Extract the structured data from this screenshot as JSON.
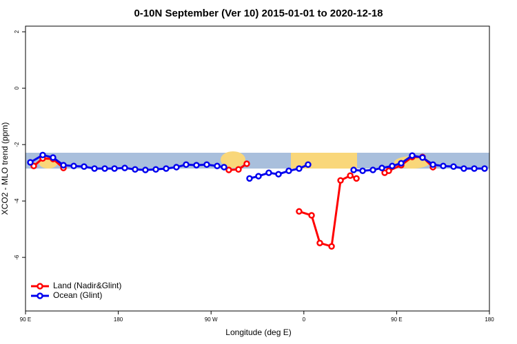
{
  "chart_data": {
    "type": "line",
    "title": "0-10N September (Ver 10)   2015-01-01 to 2020-12-18",
    "xlabel": "Longitude (deg E)",
    "ylabel": "XCO2 - MLO trend (ppm)",
    "xlim": [
      90,
      540
    ],
    "xticks": [
      {
        "value": 90,
        "label": "90 E"
      },
      {
        "value": 180,
        "label": "180"
      },
      {
        "value": 270,
        "label": "90 W"
      },
      {
        "value": 360,
        "label": "0"
      },
      {
        "value": 450,
        "label": "90 E"
      },
      {
        "value": 540,
        "label": "180"
      }
    ],
    "ylim": [
      -7.9,
      2.2
    ],
    "yticks": [
      -6,
      -4,
      -2,
      0,
      2
    ],
    "grid": false,
    "legend": "lower left",
    "series": [
      {
        "name": "Land (Nadir&Glint)",
        "color": "#ff0000",
        "x": [
          98,
          106.7,
          116.7,
          126.8,
          200,
          287.2,
          296.6,
          304.6,
          330,
          355.4,
          367.5,
          375.5,
          386.9,
          395.6,
          405,
          411,
          425,
          438.4,
          442.4,
          454.4,
          465.1,
          475.1,
          485.2
        ],
        "values": [
          -2.76,
          -2.49,
          -2.51,
          -2.83,
          null,
          -2.9,
          -2.88,
          -2.68,
          null,
          -4.37,
          -4.51,
          -5.49,
          -5.61,
          -3.27,
          -3.1,
          -3.2,
          null,
          -3.0,
          -2.93,
          -2.73,
          -2.44,
          -2.44,
          -2.8
        ]
      },
      {
        "name": "Ocean (Glint)",
        "color": "#0000ee",
        "x": [
          94.7,
          106.7,
          116.7,
          126.8,
          136.8,
          146.8,
          156.9,
          166.9,
          176.3,
          186.3,
          196.3,
          206.3,
          216.4,
          226.4,
          236.4,
          245.8,
          255.8,
          265.8,
          275.9,
          282.6,
          295,
          307.3,
          316,
          326,
          335.4,
          345.4,
          355.4,
          364.1,
          385,
          408.3,
          417,
          427,
          435.7,
          445.7,
          454.4,
          465.1,
          475.1,
          485.2,
          495.2,
          505.2,
          515.2,
          525.3,
          535.3
        ],
        "values": [
          -2.63,
          -2.37,
          -2.46,
          -2.73,
          -2.76,
          -2.78,
          -2.85,
          -2.85,
          -2.85,
          -2.83,
          -2.88,
          -2.9,
          -2.88,
          -2.85,
          -2.8,
          -2.71,
          -2.73,
          -2.71,
          -2.76,
          -2.8,
          null,
          -3.2,
          -3.12,
          -3.0,
          -3.05,
          -2.93,
          -2.85,
          -2.71,
          null,
          -2.9,
          -2.93,
          -2.9,
          -2.83,
          -2.76,
          -2.66,
          -2.39,
          -2.46,
          -2.71,
          -2.76,
          -2.78,
          -2.85,
          -2.85,
          -2.85
        ]
      }
    ]
  }
}
